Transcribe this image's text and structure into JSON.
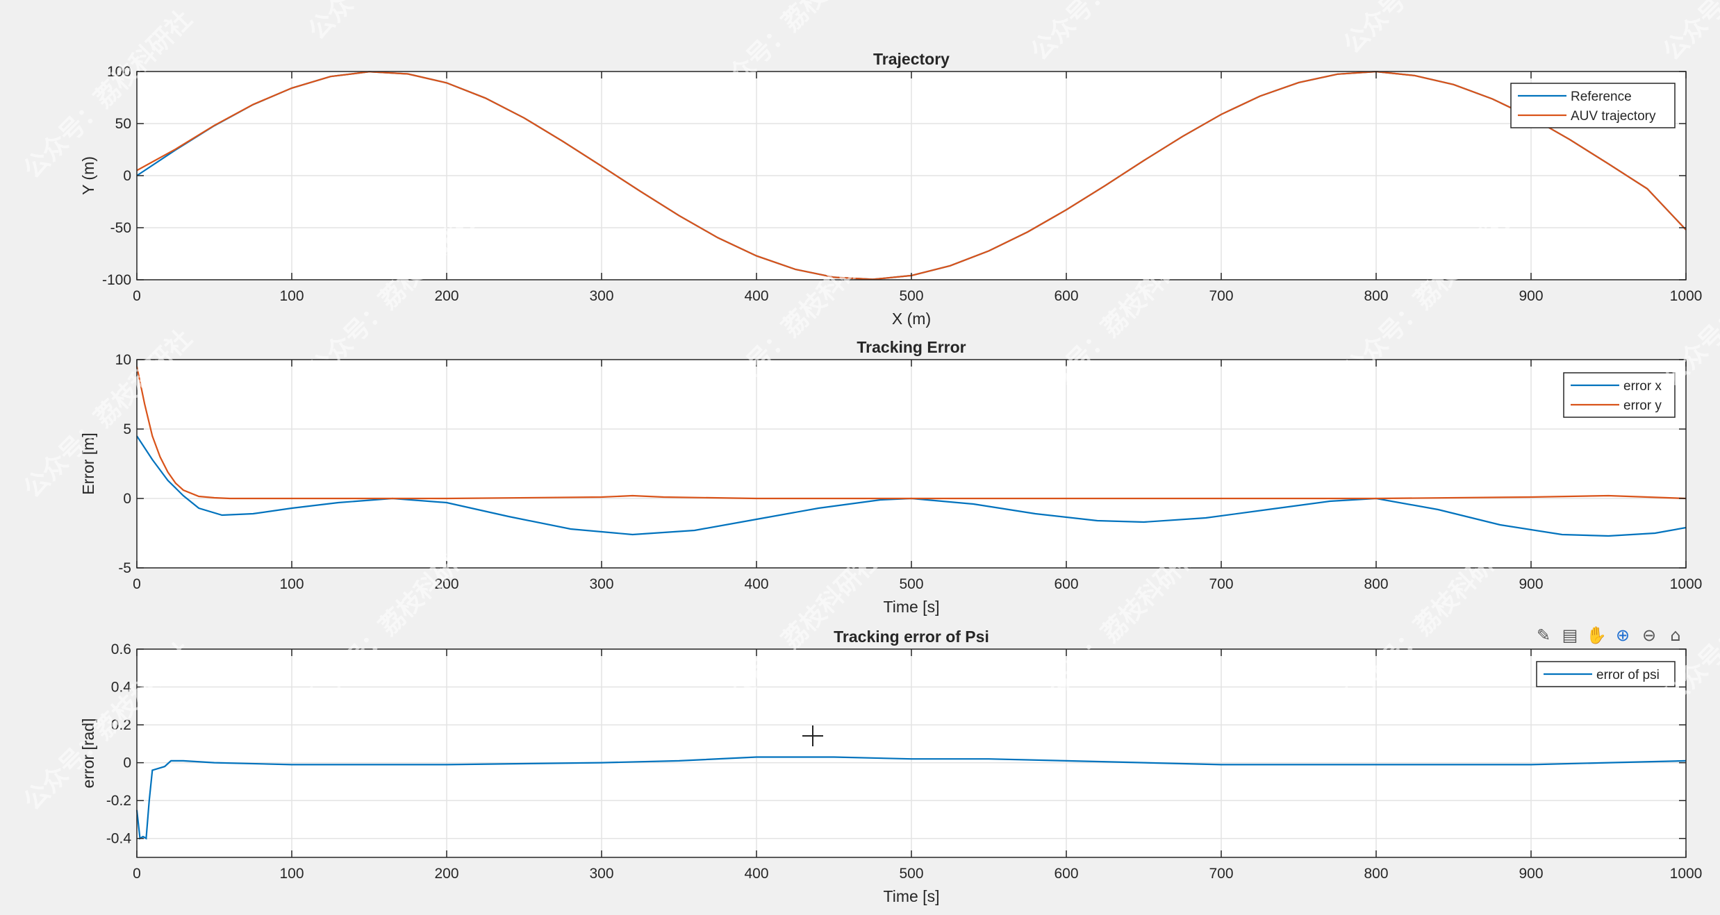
{
  "toolbar": {
    "icons": [
      "brush-icon",
      "data-tip-icon",
      "pan-hand-icon",
      "zoom-in-icon",
      "zoom-out-icon",
      "home-icon"
    ]
  },
  "watermark": {
    "text": "公众号：荔枝科研社"
  },
  "chart_data": [
    {
      "type": "line",
      "title": "Trajectory",
      "xlabel": "X (m)",
      "ylabel": "Y (m)",
      "xlim": [
        0,
        1000
      ],
      "ylim": [
        -100,
        100
      ],
      "xticks": [
        0,
        100,
        200,
        300,
        400,
        500,
        600,
        700,
        800,
        900,
        1000
      ],
      "yticks": [
        -100,
        -50,
        0,
        50,
        100
      ],
      "grid": true,
      "legend_position": "top-right",
      "series": [
        {
          "name": "Reference",
          "color": "#0072bd",
          "x": [
            0,
            25,
            50,
            75,
            100,
            125,
            150,
            175,
            200,
            225,
            250,
            275,
            300,
            325,
            350,
            375,
            400,
            425,
            450,
            475,
            500,
            525,
            550,
            575,
            600,
            625,
            650,
            675,
            700,
            725,
            750,
            775,
            800,
            825,
            850,
            875,
            900,
            925,
            950,
            975,
            1000
          ],
          "y": [
            0,
            24.7,
            47.9,
            68.2,
            84.1,
            95.2,
            99.8,
            97.7,
            89.1,
            74.5,
            55.4,
            32.9,
            9.1,
            -15.1,
            -38.4,
            -59.6,
            -77.1,
            -89.9,
            -97.6,
            -99.6,
            -95.9,
            -86.5,
            -72.3,
            -54.1,
            -32.8,
            -9.6,
            14.5,
            37.6,
            58.8,
            76.3,
            89.4,
            97.5,
            99.9,
            96.1,
            87.5,
            73.7,
            55.9,
            34.6,
            11.3,
            -12.6,
            -52
          ]
        },
        {
          "name": "AUV trajectory",
          "color": "#d95319",
          "x": [
            0,
            25,
            50,
            75,
            100,
            125,
            150,
            175,
            200,
            225,
            250,
            275,
            300,
            325,
            350,
            375,
            400,
            425,
            450,
            475,
            500,
            525,
            550,
            575,
            600,
            625,
            650,
            675,
            700,
            725,
            750,
            775,
            800,
            825,
            850,
            875,
            900,
            925,
            950,
            975,
            1000
          ],
          "y": [
            5,
            25.5,
            48.2,
            68.3,
            84.1,
            95.2,
            99.8,
            97.7,
            89.1,
            74.5,
            55.4,
            32.9,
            9.1,
            -15.1,
            -38.4,
            -59.6,
            -77.1,
            -89.9,
            -97.6,
            -99.6,
            -95.9,
            -86.5,
            -72.3,
            -54.1,
            -32.8,
            -9.6,
            14.5,
            37.6,
            58.8,
            76.3,
            89.4,
            97.5,
            99.9,
            96.1,
            87.5,
            73.7,
            55.9,
            34.6,
            11.3,
            -12.6,
            -52
          ]
        }
      ]
    },
    {
      "type": "line",
      "title": "Tracking Error",
      "xlabel": "Time [s]",
      "ylabel": "Error [m]",
      "xlim": [
        0,
        1000
      ],
      "ylim": [
        -5,
        10
      ],
      "xticks": [
        0,
        100,
        200,
        300,
        400,
        500,
        600,
        700,
        800,
        900,
        1000
      ],
      "yticks": [
        -5,
        0,
        5,
        10
      ],
      "grid": true,
      "legend_position": "top-right",
      "series": [
        {
          "name": "error x",
          "color": "#0072bd",
          "x": [
            0,
            10,
            20,
            30,
            40,
            55,
            75,
            100,
            130,
            165,
            200,
            240,
            280,
            320,
            360,
            400,
            440,
            480,
            500,
            540,
            580,
            620,
            650,
            690,
            730,
            770,
            800,
            840,
            880,
            920,
            950,
            980,
            1000
          ],
          "y": [
            4.5,
            2.8,
            1.3,
            0.2,
            -0.7,
            -1.2,
            -1.1,
            -0.7,
            -0.3,
            0,
            -0.3,
            -1.3,
            -2.2,
            -2.6,
            -2.3,
            -1.5,
            -0.7,
            -0.1,
            0,
            -0.4,
            -1.1,
            -1.6,
            -1.7,
            -1.4,
            -0.8,
            -0.2,
            0,
            -0.8,
            -1.9,
            -2.6,
            -2.7,
            -2.5,
            -2.1
          ]
        },
        {
          "name": "error y",
          "color": "#d95319",
          "x": [
            0,
            5,
            10,
            15,
            20,
            25,
            30,
            40,
            50,
            60,
            100,
            200,
            300,
            320,
            340,
            400,
            500,
            600,
            700,
            800,
            900,
            950,
            1000
          ],
          "y": [
            9.5,
            6.8,
            4.5,
            3.0,
            1.9,
            1.1,
            0.6,
            0.15,
            0.05,
            0,
            0,
            0,
            0.1,
            0.2,
            0.1,
            0,
            0,
            0,
            0,
            0,
            0.1,
            0.2,
            0
          ]
        }
      ]
    },
    {
      "type": "line",
      "title": "Tracking error of Psi",
      "xlabel": "Time [s]",
      "ylabel": "error [rad]",
      "xlim": [
        0,
        1000
      ],
      "ylim": [
        -0.5,
        0.6
      ],
      "xticks": [
        0,
        100,
        200,
        300,
        400,
        500,
        600,
        700,
        800,
        900,
        1000
      ],
      "yticks": [
        -0.4,
        -0.2,
        0,
        0.2,
        0.4,
        0.6
      ],
      "grid": true,
      "legend_position": "top-right",
      "series": [
        {
          "name": "error of psi",
          "color": "#0072bd",
          "x": [
            0,
            2,
            4,
            6,
            8,
            10,
            14,
            18,
            22,
            30,
            50,
            100,
            200,
            300,
            350,
            400,
            450,
            500,
            550,
            600,
            700,
            800,
            900,
            950,
            1000
          ],
          "y": [
            -0.25,
            -0.4,
            -0.39,
            -0.4,
            -0.2,
            -0.04,
            -0.03,
            -0.02,
            0.01,
            0.01,
            0,
            -0.01,
            -0.01,
            0,
            0.01,
            0.03,
            0.03,
            0.02,
            0.02,
            0.01,
            -0.01,
            -0.01,
            -0.01,
            0,
            0.01
          ]
        }
      ]
    }
  ]
}
